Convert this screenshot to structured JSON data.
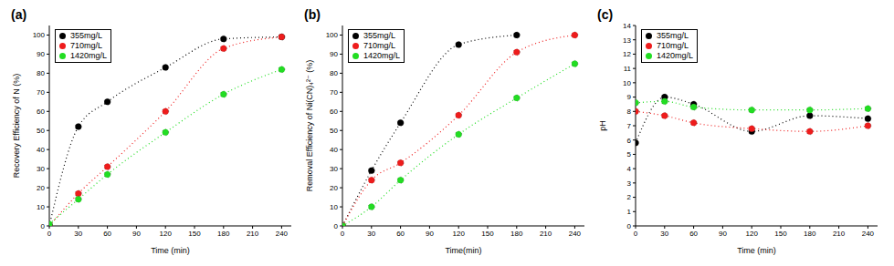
{
  "chart_data": [
    {
      "type": "line",
      "title": "(a)",
      "x_label": "Time (min)",
      "y_label": "Recovery Efficiency of N (%)",
      "x": [
        0,
        30,
        60,
        120,
        180,
        240
      ],
      "xlim": [
        0,
        250
      ],
      "xticks": [
        0,
        30,
        60,
        90,
        120,
        150,
        180,
        210,
        240
      ],
      "ylim": [
        0,
        105
      ],
      "yticks": [
        0,
        10,
        20,
        30,
        40,
        50,
        60,
        70,
        80,
        90,
        100
      ],
      "legend": "upper left",
      "marker": "circle",
      "line_style": "dotted",
      "series": [
        {
          "name": "355mg/L",
          "color": "#000000",
          "values": [
            0,
            52,
            65,
            83,
            98,
            99
          ]
        },
        {
          "name": "710mg/L",
          "color": "#ee1c1c",
          "values": [
            0,
            17,
            31,
            60,
            93,
            99
          ]
        },
        {
          "name": "1420mg/L",
          "color": "#22dd22",
          "values": [
            1,
            14,
            27,
            49,
            69,
            82
          ]
        }
      ]
    },
    {
      "type": "line",
      "title": "(b)",
      "x_label": "Time(min)",
      "y_label": "Removal Efficiency of Ni(CN)₄²⁻ (%)",
      "x": [
        0,
        30,
        60,
        120,
        180,
        240
      ],
      "xlim": [
        0,
        250
      ],
      "xticks": [
        0,
        30,
        60,
        90,
        120,
        150,
        180,
        210,
        240
      ],
      "ylim": [
        0,
        105
      ],
      "yticks": [
        0,
        10,
        20,
        30,
        40,
        50,
        60,
        70,
        80,
        90,
        100
      ],
      "legend": "upper left",
      "marker": "circle",
      "line_style": "dotted",
      "series": [
        {
          "name": "355mg/L",
          "color": "#000000",
          "values": [
            0,
            29,
            54,
            95,
            100,
            null
          ]
        },
        {
          "name": "710mg/L",
          "color": "#ee1c1c",
          "values": [
            0,
            24,
            33,
            58,
            91,
            100
          ]
        },
        {
          "name": "1420mg/L",
          "color": "#22dd22",
          "values": [
            0,
            10,
            24,
            48,
            67,
            85
          ]
        }
      ]
    },
    {
      "type": "line",
      "title": "(c)",
      "x_label": "Time (min)",
      "y_label": "pH",
      "x": [
        0,
        30,
        60,
        120,
        180,
        240
      ],
      "xlim": [
        0,
        250
      ],
      "xticks": [
        0,
        30,
        60,
        90,
        120,
        150,
        180,
        210,
        240
      ],
      "ylim": [
        0,
        14
      ],
      "yticks": [
        0,
        1,
        2,
        3,
        4,
        5,
        6,
        7,
        8,
        9,
        10,
        11,
        12,
        13,
        14
      ],
      "legend": "upper left",
      "marker": "circle",
      "line_style": "dotted",
      "series": [
        {
          "name": "355mg/L",
          "color": "#000000",
          "values": [
            5.8,
            9.0,
            8.5,
            6.6,
            7.7,
            7.5
          ]
        },
        {
          "name": "710mg/L",
          "color": "#ee1c1c",
          "values": [
            8.0,
            7.7,
            7.2,
            6.8,
            6.6,
            7.0
          ]
        },
        {
          "name": "1420mg/L",
          "color": "#22dd22",
          "values": [
            8.6,
            8.7,
            8.3,
            8.1,
            8.1,
            8.2
          ]
        }
      ]
    }
  ]
}
